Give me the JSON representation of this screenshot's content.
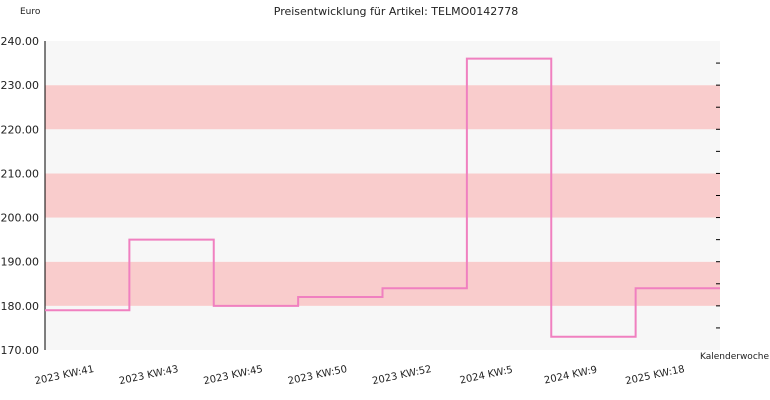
{
  "chart_data": {
    "type": "line",
    "title": "Preisentwicklung für Artikel: TELMO0142778",
    "ylabel": "Euro",
    "xlabel": "Kalenderwoche",
    "ylim": [
      170,
      240
    ],
    "yticks": [
      "170.00",
      "180.00",
      "190.00",
      "200.00",
      "210.00",
      "220.00",
      "230.00",
      "240.00"
    ],
    "categories": [
      "2023 KW:41",
      "2023 KW:43",
      "2023 KW:45",
      "2023 KW:50",
      "2023 KW:52",
      "2024 KW:5",
      "2024 KW:9",
      "2025 KW:18",
      ""
    ],
    "series": [
      {
        "values": [
          179,
          195,
          180,
          182,
          184,
          236,
          173,
          184,
          184
        ]
      }
    ],
    "line_style": "step",
    "grid": true,
    "colors": {
      "line": "#f080c0",
      "band_light": "#f7f7f7",
      "band_pink": "#f9cccc",
      "axis": "#000000"
    }
  }
}
